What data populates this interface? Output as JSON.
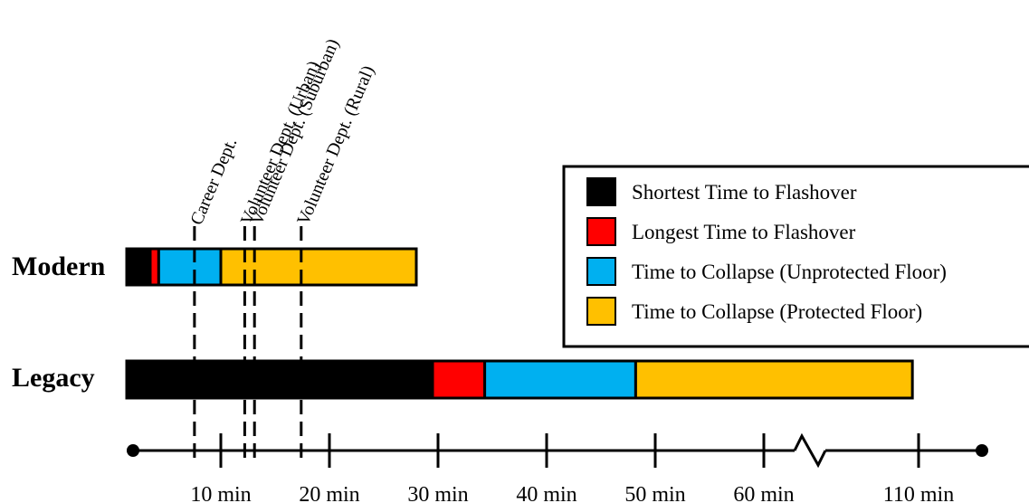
{
  "chart_data": {
    "type": "bar",
    "orientation": "horizontal-stacked",
    "title": "",
    "xlabel": "",
    "ylabel": "",
    "axis_broken_between": [
      60,
      110
    ],
    "ticks": [
      {
        "value": 10,
        "label": "10 min"
      },
      {
        "value": 20,
        "label": "20 min"
      },
      {
        "value": 30,
        "label": "30 min"
      },
      {
        "value": 40,
        "label": "40 min"
      },
      {
        "value": 50,
        "label": "50 min"
      },
      {
        "value": 60,
        "label": "60 min"
      },
      {
        "value": 110,
        "label": "110 min"
      }
    ],
    "rows": [
      {
        "label": "Modern",
        "segments": [
          {
            "series": "shortest",
            "start": 0,
            "end": 2.5
          },
          {
            "series": "longest",
            "start": 2.5,
            "end": 3.4
          },
          {
            "series": "unprotected",
            "start": 3.4,
            "end": 10.0
          },
          {
            "series": "protected",
            "start": 10.0,
            "end": 28.0
          }
        ]
      },
      {
        "label": "Legacy",
        "segments": [
          {
            "series": "shortest",
            "start": 0,
            "end": 29.5
          },
          {
            "series": "longest",
            "start": 29.5,
            "end": 34.3
          },
          {
            "series": "unprotected",
            "start": 34.3,
            "end": 48.2
          },
          {
            "series": "protected",
            "start": 48.2,
            "end": 108.0
          }
        ]
      }
    ],
    "series": [
      {
        "id": "shortest",
        "name": "Shortest Time to Flashover",
        "color": "#000000"
      },
      {
        "id": "longest",
        "name": "Longest Time to Flashover",
        "color": "#ff0000"
      },
      {
        "id": "unprotected",
        "name": "Time to Collapse (Unprotected Floor)",
        "color": "#00b0f0"
      },
      {
        "id": "protected",
        "name": "Time to Collapse (Protected Floor)",
        "color": "#ffc000"
      }
    ],
    "response_times": [
      {
        "label": "Career Dept.",
        "value": 7.2
      },
      {
        "label": "Volunteer Dept. (Urban)",
        "value": 12.2
      },
      {
        "label": "Volunteer Dept. (Suburban)",
        "value": 13.1
      },
      {
        "label": "Volunteer Dept. (Rural)",
        "value": 17.4
      }
    ],
    "legend_position": "top-right"
  }
}
